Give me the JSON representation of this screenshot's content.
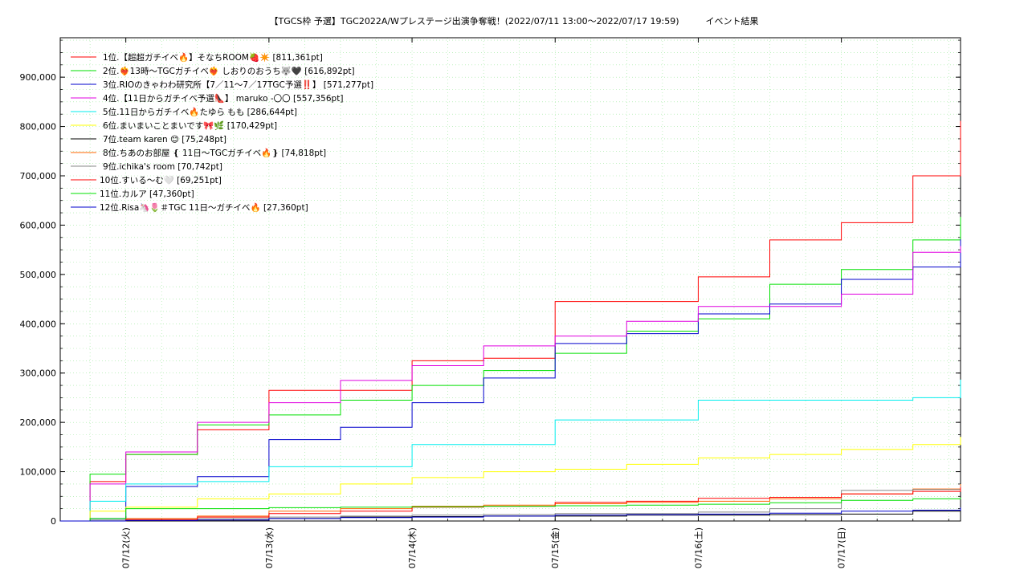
{
  "chart_data": {
    "type": "line",
    "title": "【TGCS枠 予選】TGC2022A/Wプレステージ出演争奪戦！(2022/07/11 13:00～2022/07/17 19:59)　　　イベント結果",
    "xlabel": "",
    "ylabel": "",
    "xlim": [
      "2022-07-11 13:00",
      "2022-07-17 19:59"
    ],
    "ylim": [
      0,
      980000
    ],
    "y_ticks": [
      0,
      100000,
      200000,
      300000,
      400000,
      500000,
      600000,
      700000,
      800000,
      900000
    ],
    "y_tick_labels": [
      "0",
      "100,000",
      "200,000",
      "300,000",
      "400,000",
      "500,000",
      "600,000",
      "700,000",
      "800,000",
      "900,000"
    ],
    "x_ticks": [
      "2022-07-12 00:00",
      "2022-07-13 00:00",
      "2022-07-14 00:00",
      "2022-07-15 00:00",
      "2022-07-16 00:00",
      "2022-07-17 00:00"
    ],
    "x_tick_labels": [
      "07/12(火)",
      "07/13(水)",
      "07/14(木)",
      "07/15(金)",
      "07/16(土)",
      "07/17(日)"
    ],
    "grid": true,
    "legend_position": "top-left",
    "x": [
      "2022-07-11 13:00",
      "2022-07-11 18:00",
      "2022-07-12 00:00",
      "2022-07-12 12:00",
      "2022-07-13 00:00",
      "2022-07-13 12:00",
      "2022-07-14 00:00",
      "2022-07-14 12:00",
      "2022-07-15 00:00",
      "2022-07-15 12:00",
      "2022-07-16 00:00",
      "2022-07-16 12:00",
      "2022-07-17 00:00",
      "2022-07-17 12:00",
      "2022-07-17 19:59"
    ],
    "series": [
      {
        "name": "1位.【超超ガチイベ🔥】そなちROOM🍓✴️ [811,361pt]",
        "color": "#ff0000",
        "values": [
          0,
          80000,
          135000,
          185000,
          265000,
          265000,
          325000,
          330000,
          445000,
          445000,
          495000,
          570000,
          605000,
          700000,
          811361
        ]
      },
      {
        "name": "2位.❤️‍🔥13時〜TGCガチイベ❤️‍🔥 しおりのおうち🐺🖤 [616,892pt]",
        "color": "#00e000",
        "values": [
          0,
          95000,
          135000,
          195000,
          215000,
          245000,
          275000,
          305000,
          340000,
          385000,
          410000,
          480000,
          510000,
          570000,
          616892
        ]
      },
      {
        "name": "3位.RIOのきゃわわ研究所【7／11〜7／17TGC予選‼️】 [571,277pt]",
        "color": "#0000cc",
        "values": [
          0,
          5000,
          70000,
          90000,
          165000,
          190000,
          240000,
          290000,
          360000,
          380000,
          420000,
          440000,
          490000,
          515000,
          571277
        ]
      },
      {
        "name": "4位.【11日からガチイベ予選👠】 maruko -〇〇 [557,356pt]",
        "color": "#e000e0",
        "values": [
          0,
          75000,
          140000,
          200000,
          240000,
          285000,
          315000,
          355000,
          375000,
          405000,
          435000,
          435000,
          460000,
          545000,
          557356
        ]
      },
      {
        "name": "5位.11日からガチイベ🔥たゆら もも [286,644pt]",
        "color": "#00eeee",
        "values": [
          0,
          40000,
          75000,
          80000,
          110000,
          110000,
          155000,
          155000,
          205000,
          205000,
          245000,
          245000,
          245000,
          250000,
          286644
        ]
      },
      {
        "name": "6位.まいまいことまいです🎀🌿 [170,429pt]",
        "color": "#ffff00",
        "values": [
          0,
          20000,
          28000,
          45000,
          55000,
          75000,
          88000,
          100000,
          105000,
          115000,
          128000,
          135000,
          145000,
          155000,
          170429
        ]
      },
      {
        "name": "7位.team karen 😊 [75,248pt]",
        "color": "#000000",
        "values": [
          0,
          0,
          1000,
          2000,
          5000,
          8000,
          9000,
          10000,
          10000,
          12000,
          12000,
          13000,
          14000,
          20000,
          75248
        ]
      },
      {
        "name": "8位.ちあのお部屋 ❴ 11日〜TGCガチイベ🔥❵ [74,818pt]",
        "color": "#ff6600",
        "values": [
          0,
          0,
          5000,
          10000,
          20000,
          25000,
          30000,
          32000,
          35000,
          38000,
          40000,
          45000,
          55000,
          65000,
          74818
        ]
      },
      {
        "name": "9位.ichika's room [70,742pt]",
        "color": "#888888",
        "values": [
          0,
          2000,
          3000,
          5000,
          8000,
          10000,
          12000,
          13000,
          15000,
          15000,
          18000,
          25000,
          62000,
          64000,
          70742
        ]
      },
      {
        "name": "10位.すいる〜む🤍 [69,251pt]",
        "color": "#ff0000",
        "values": [
          0,
          0,
          3000,
          8000,
          15000,
          20000,
          28000,
          30000,
          38000,
          40000,
          46000,
          48000,
          55000,
          60000,
          69251
        ]
      },
      {
        "name": "11位.カルア [47,360pt]",
        "color": "#00e000",
        "values": [
          0,
          5000,
          25000,
          25000,
          27000,
          28000,
          29000,
          30000,
          31000,
          32000,
          34000,
          37000,
          42000,
          45000,
          47360
        ]
      },
      {
        "name": "12位.Risa🦄🌷＃TGC 11日〜ガチイベ🔥 [27,360pt]",
        "color": "#0000cc",
        "values": [
          0,
          0,
          1000,
          2000,
          5000,
          7000,
          8000,
          10000,
          12000,
          13000,
          14000,
          16000,
          20000,
          22000,
          27360
        ]
      }
    ]
  }
}
